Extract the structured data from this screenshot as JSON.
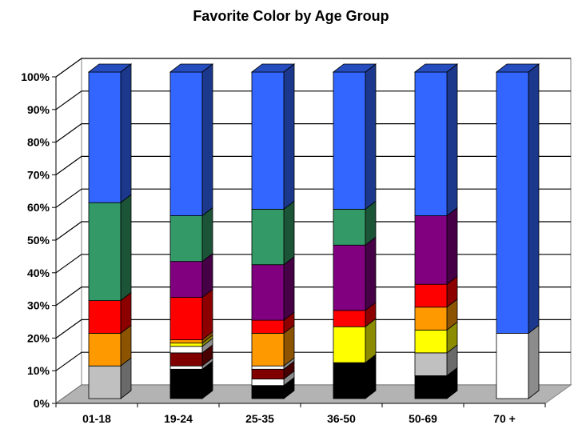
{
  "chart_data": {
    "type": "bar",
    "stacked": true,
    "percent_stacked": true,
    "three_d": true,
    "title": "Favorite Color by Age Group",
    "xlabel": "",
    "ylabel": "",
    "ylim": [
      0,
      100
    ],
    "y_ticks": [
      "0%",
      "10%",
      "20%",
      "30%",
      "40%",
      "50%",
      "60%",
      "70%",
      "80%",
      "90%",
      "100%"
    ],
    "categories": [
      "01-18",
      "19-24",
      "25-35",
      "36-50",
      "50-69",
      "70 +"
    ],
    "grid": true,
    "legend": "none",
    "series": [
      {
        "color": "#000000",
        "values": [
          0,
          9,
          4,
          11,
          7,
          0
        ]
      },
      {
        "color": "#ffffff",
        "values": [
          0,
          1,
          2,
          0,
          0,
          20
        ]
      },
      {
        "color": "#c0c0c0",
        "values": [
          10,
          0,
          0,
          0,
          7,
          0
        ]
      },
      {
        "color": "#800000",
        "values": [
          0,
          4,
          3,
          0,
          0,
          0
        ]
      },
      {
        "color": "#ffffff",
        "values": [
          0,
          2,
          1,
          0,
          0,
          0
        ]
      },
      {
        "color": "#ffff00",
        "values": [
          0,
          1,
          0,
          11,
          7,
          0
        ]
      },
      {
        "color": "#ff9900",
        "values": [
          10,
          1,
          10,
          0,
          7,
          0
        ]
      },
      {
        "color": "#ff0000",
        "values": [
          10,
          13,
          4,
          5,
          7,
          0
        ]
      },
      {
        "color": "#800080",
        "values": [
          0,
          11,
          17,
          20,
          21,
          0
        ]
      },
      {
        "color": "#339966",
        "values": [
          30,
          14,
          17,
          11,
          0,
          0
        ]
      },
      {
        "color": "#3366ff",
        "values": [
          40,
          44,
          42,
          42,
          44,
          80
        ]
      }
    ]
  }
}
